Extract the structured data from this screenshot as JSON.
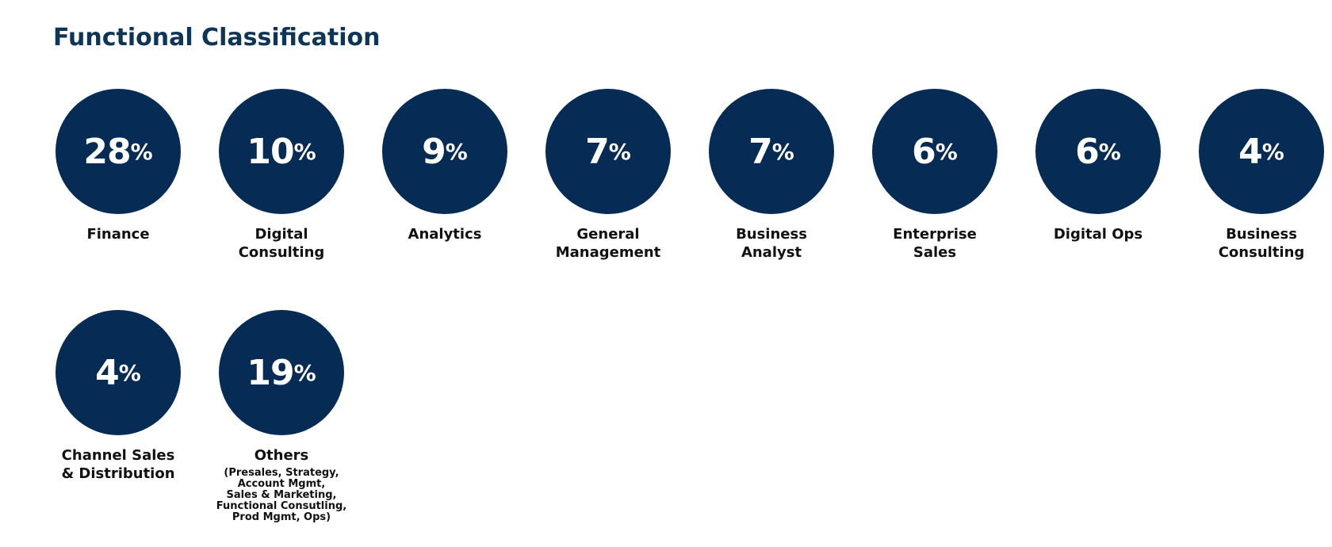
{
  "title": "Functional Classification",
  "items": [
    {
      "value": 28,
      "unit": "%",
      "label": "Finance"
    },
    {
      "value": 10,
      "unit": "%",
      "label": "Digital\nConsulting"
    },
    {
      "value": 9,
      "unit": "%",
      "label": "Analytics"
    },
    {
      "value": 7,
      "unit": "%",
      "label": "General\nManagement"
    },
    {
      "value": 7,
      "unit": "%",
      "label": "Business\nAnalyst"
    },
    {
      "value": 6,
      "unit": "%",
      "label": "Enterprise\nSales"
    },
    {
      "value": 6,
      "unit": "%",
      "label": "Digital Ops"
    },
    {
      "value": 4,
      "unit": "%",
      "label": "Business\nConsulting"
    },
    {
      "value": 4,
      "unit": "%",
      "label": "Channel Sales\n& Distribution"
    },
    {
      "value": 19,
      "unit": "%",
      "label": "Others",
      "sublabel": "(Presales, Strategy,\nAccount Mgmt,\nSales & Marketing,\nFunctional Consutling,\nProd Mgmt, Ops)"
    }
  ]
}
